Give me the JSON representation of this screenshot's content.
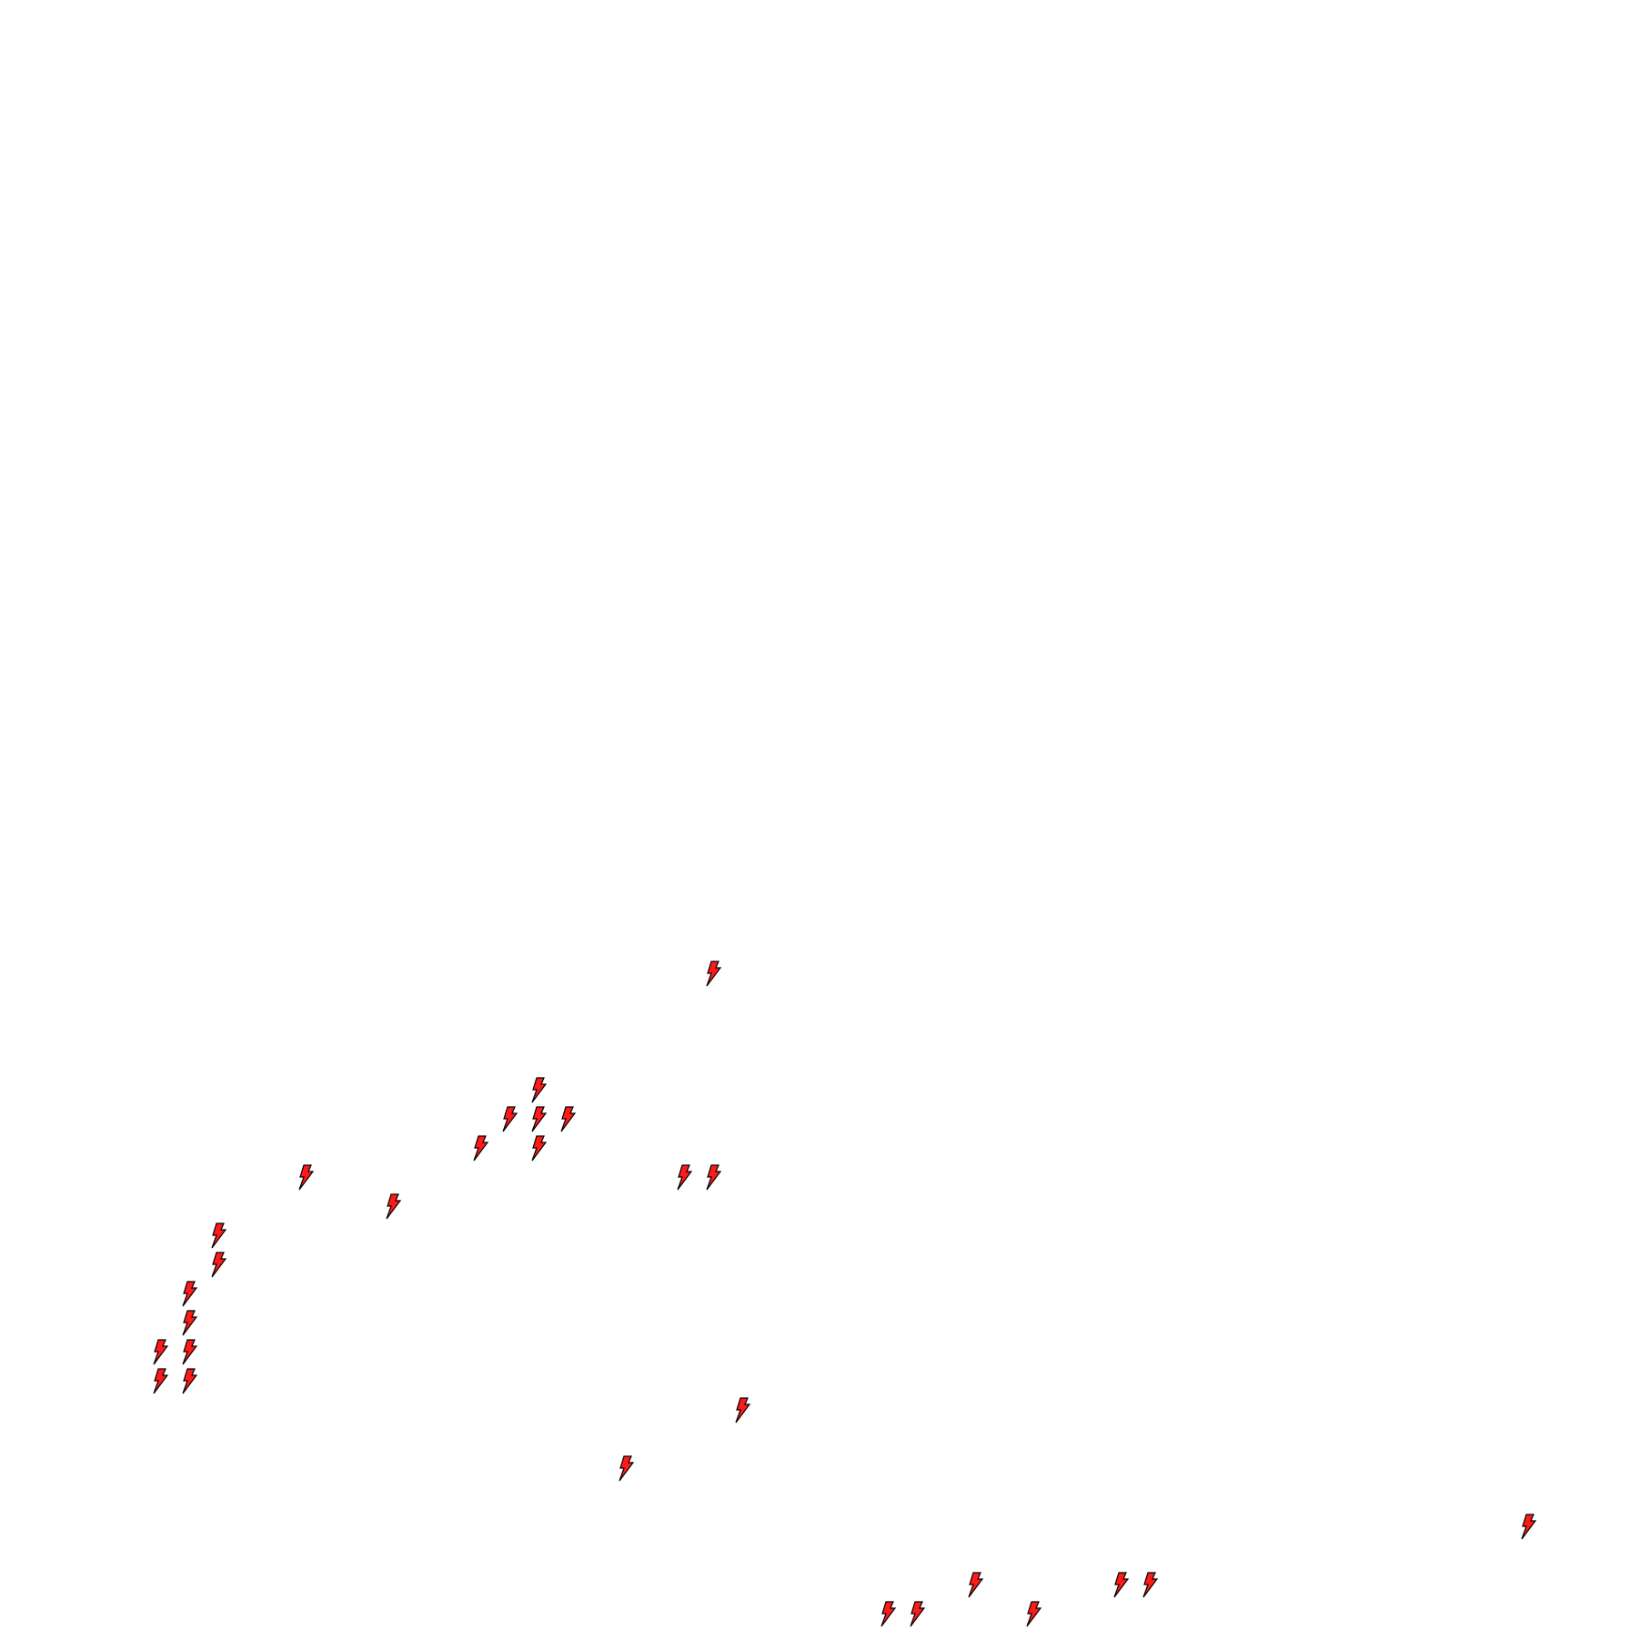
{
  "background_color": "#ffffff",
  "marker": {
    "icon": "lightning-bolt-icon",
    "fill_color": "#ff1a1a",
    "stroke_color": "#000000",
    "count": 29
  }
}
